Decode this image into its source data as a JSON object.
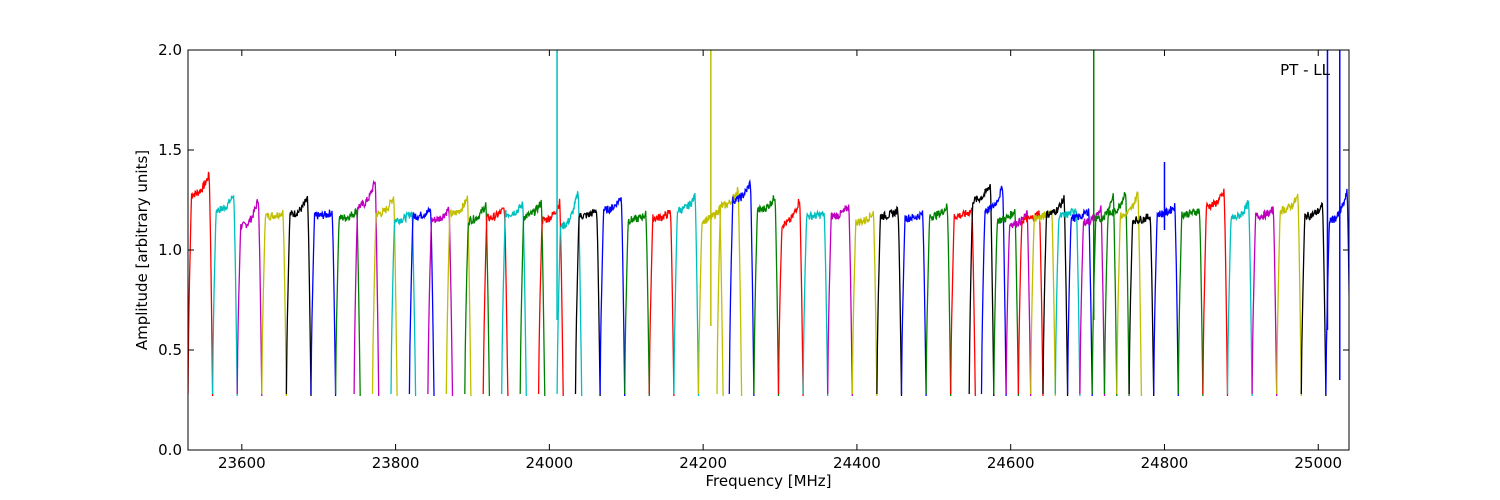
{
  "chart_data": {
    "type": "line",
    "title": "",
    "xlabel": "Frequency [MHz]",
    "ylabel": "Amplitude [arbitrary units]",
    "annotation": "PT - LL",
    "xlim": [
      23530,
      25040
    ],
    "ylim": [
      0.0,
      2.0
    ],
    "x_ticks": [
      23600,
      23800,
      24000,
      24200,
      24400,
      24600,
      24800,
      25000
    ],
    "y_ticks": [
      "0.0",
      "0.5",
      "1.0",
      "1.5",
      "2.0"
    ],
    "grid": false,
    "legend": "none",
    "colors": [
      "#ff0000",
      "#00bfbf",
      "#bf00bf",
      "#bfbf00",
      "#000000",
      "#0000ff",
      "#008000"
    ],
    "channel_width_mhz": 32,
    "channels": [
      {
        "start": 23530,
        "level": 1.28,
        "end_peak": 1.38,
        "color": "#ff0000"
      },
      {
        "start": 23562,
        "level": 1.2,
        "end_peak": 1.28,
        "color": "#00bfbf"
      },
      {
        "start": 23594,
        "level": 1.12,
        "end_peak": 1.26,
        "color": "#bf00bf"
      },
      {
        "start": 23626,
        "level": 1.17,
        "end_peak": 1.19,
        "color": "#bfbf00"
      },
      {
        "start": 23658,
        "level": 1.18,
        "end_peak": 1.26,
        "color": "#000000"
      },
      {
        "start": 23690,
        "level": 1.17,
        "end_peak": 1.19,
        "color": "#0000ff"
      },
      {
        "start": 23722,
        "level": 1.16,
        "end_peak": 1.2,
        "color": "#008000"
      },
      {
        "start": 23746,
        "level": 1.22,
        "end_peak": 1.35,
        "color": "#bf00bf"
      },
      {
        "start": 23770,
        "level": 1.18,
        "end_peak": 1.27,
        "color": "#bfbf00"
      },
      {
        "start": 23794,
        "level": 1.15,
        "end_peak": 1.19,
        "color": "#00bfbf"
      },
      {
        "start": 23818,
        "level": 1.17,
        "end_peak": 1.2,
        "color": "#0000ff"
      },
      {
        "start": 23842,
        "level": 1.15,
        "end_peak": 1.21,
        "color": "#bf00bf"
      },
      {
        "start": 23866,
        "level": 1.18,
        "end_peak": 1.26,
        "color": "#bfbf00"
      },
      {
        "start": 23890,
        "level": 1.15,
        "end_peak": 1.23,
        "color": "#008000"
      },
      {
        "start": 23914,
        "level": 1.16,
        "end_peak": 1.21,
        "color": "#ff0000"
      },
      {
        "start": 23938,
        "level": 1.18,
        "end_peak": 1.23,
        "color": "#00bfbf"
      },
      {
        "start": 23962,
        "level": 1.17,
        "end_peak": 1.24,
        "color": "#008000"
      },
      {
        "start": 23986,
        "level": 1.15,
        "end_peak": 1.24,
        "color": "#ff0000"
      },
      {
        "start": 24010,
        "level": 1.12,
        "end_peak": 1.3,
        "color": "#00bfbf"
      },
      {
        "start": 24034,
        "level": 1.17,
        "end_peak": 1.2,
        "color": "#000000"
      },
      {
        "start": 24066,
        "level": 1.2,
        "end_peak": 1.27,
        "color": "#0000ff"
      },
      {
        "start": 24098,
        "level": 1.15,
        "end_peak": 1.18,
        "color": "#008000"
      },
      {
        "start": 24130,
        "level": 1.16,
        "end_peak": 1.19,
        "color": "#ff0000"
      },
      {
        "start": 24162,
        "level": 1.2,
        "end_peak": 1.27,
        "color": "#00bfbf"
      },
      {
        "start": 24194,
        "level": 1.15,
        "end_peak": 1.21,
        "color": "#bfbf00"
      },
      {
        "start": 24218,
        "level": 1.22,
        "end_peak": 1.31,
        "color": "#bfbf00"
      },
      {
        "start": 24234,
        "level": 1.25,
        "end_peak": 1.34,
        "color": "#0000ff"
      },
      {
        "start": 24266,
        "level": 1.2,
        "end_peak": 1.27,
        "color": "#008000"
      },
      {
        "start": 24298,
        "level": 1.13,
        "end_peak": 1.26,
        "color": "#ff0000"
      },
      {
        "start": 24330,
        "level": 1.17,
        "end_peak": 1.18,
        "color": "#00bfbf"
      },
      {
        "start": 24362,
        "level": 1.17,
        "end_peak": 1.22,
        "color": "#bf00bf"
      },
      {
        "start": 24394,
        "level": 1.14,
        "end_peak": 1.19,
        "color": "#bfbf00"
      },
      {
        "start": 24426,
        "level": 1.17,
        "end_peak": 1.2,
        "color": "#000000"
      },
      {
        "start": 24458,
        "level": 1.16,
        "end_peak": 1.18,
        "color": "#0000ff"
      },
      {
        "start": 24490,
        "level": 1.17,
        "end_peak": 1.22,
        "color": "#008000"
      },
      {
        "start": 24522,
        "level": 1.17,
        "end_peak": 1.2,
        "color": "#ff0000"
      },
      {
        "start": 24546,
        "level": 1.25,
        "end_peak": 1.33,
        "color": "#000000"
      },
      {
        "start": 24562,
        "level": 1.2,
        "end_peak": 1.32,
        "color": "#0000ff"
      },
      {
        "start": 24578,
        "level": 1.15,
        "end_peak": 1.2,
        "color": "#008000"
      },
      {
        "start": 24594,
        "level": 1.13,
        "end_peak": 1.18,
        "color": "#bf00bf"
      },
      {
        "start": 24610,
        "level": 1.15,
        "end_peak": 1.19,
        "color": "#ff0000"
      },
      {
        "start": 24626,
        "level": 1.16,
        "end_peak": 1.2,
        "color": "#bfbf00"
      },
      {
        "start": 24642,
        "level": 1.18,
        "end_peak": 1.26,
        "color": "#000000"
      },
      {
        "start": 24658,
        "level": 1.17,
        "end_peak": 1.21,
        "color": "#00bfbf"
      },
      {
        "start": 24674,
        "level": 1.16,
        "end_peak": 1.2,
        "color": "#0000ff"
      },
      {
        "start": 24690,
        "level": 1.14,
        "end_peak": 1.21,
        "color": "#bf00bf"
      },
      {
        "start": 24706,
        "level": 1.15,
        "end_peak": 1.28,
        "color": "#008000"
      },
      {
        "start": 24722,
        "level": 1.18,
        "end_peak": 1.3,
        "color": "#008000"
      },
      {
        "start": 24738,
        "level": 1.17,
        "end_peak": 1.29,
        "color": "#bfbf00"
      },
      {
        "start": 24754,
        "level": 1.15,
        "end_peak": 1.17,
        "color": "#000000"
      },
      {
        "start": 24786,
        "level": 1.18,
        "end_peak": 1.22,
        "color": "#0000ff"
      },
      {
        "start": 24818,
        "level": 1.18,
        "end_peak": 1.2,
        "color": "#008000"
      },
      {
        "start": 24850,
        "level": 1.22,
        "end_peak": 1.29,
        "color": "#ff0000"
      },
      {
        "start": 24882,
        "level": 1.16,
        "end_peak": 1.24,
        "color": "#00bfbf"
      },
      {
        "start": 24914,
        "level": 1.17,
        "end_peak": 1.2,
        "color": "#bf00bf"
      },
      {
        "start": 24946,
        "level": 1.2,
        "end_peak": 1.27,
        "color": "#bfbf00"
      },
      {
        "start": 24978,
        "level": 1.17,
        "end_peak": 1.22,
        "color": "#000000"
      },
      {
        "start": 25010,
        "level": 1.15,
        "end_peak": 1.29,
        "color": "#0000ff"
      }
    ],
    "spikes": [
      {
        "x": 24010,
        "y_min": 0.65,
        "y_max": 2.0,
        "color": "#00bfbf"
      },
      {
        "x": 24210,
        "y_min": 0.62,
        "y_max": 2.0,
        "color": "#bfbf00"
      },
      {
        "x": 24708,
        "y_min": 0.65,
        "y_max": 2.0,
        "color": "#008000"
      },
      {
        "x": 24800,
        "y_min": 1.1,
        "y_max": 1.44,
        "color": "#0000ff"
      },
      {
        "x": 25012,
        "y_min": 0.6,
        "y_max": 2.0,
        "color": "#0000ff"
      },
      {
        "x": 25028,
        "y_min": 0.35,
        "y_max": 2.0,
        "color": "#0000ff"
      }
    ]
  }
}
